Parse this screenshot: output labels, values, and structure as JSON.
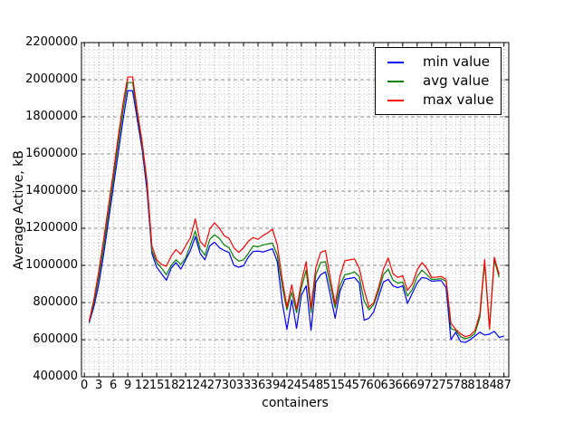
{
  "figure": {
    "background": "#ffffff",
    "frame_color": "#000000",
    "minor_grid_color": "#c9c9c9",
    "major_grid_color": "#8f8f8f"
  },
  "chart_data": {
    "type": "line",
    "title": "",
    "xlabel": "containers",
    "ylabel": "Average Active, kB",
    "xlim": [
      0,
      87
    ],
    "ylim": [
      400000,
      2200000
    ],
    "grid": "minor dotted and major dashed, both axes",
    "x_ticks": [
      0,
      3,
      6,
      9,
      12,
      15,
      18,
      21,
      24,
      27,
      30,
      33,
      36,
      39,
      42,
      45,
      48,
      51,
      54,
      57,
      60,
      63,
      66,
      69,
      72,
      75,
      78,
      81,
      84,
      87
    ],
    "y_ticks": [
      400000,
      600000,
      800000,
      1000000,
      1200000,
      1400000,
      1600000,
      1800000,
      2000000,
      2200000
    ],
    "legend": {
      "position": "upper right",
      "entries": [
        {
          "label": "min value",
          "color": "#0000ff"
        },
        {
          "label": "avg value",
          "color": "#008000"
        },
        {
          "label": "max value",
          "color": "#ff0000"
        }
      ]
    },
    "x": [
      1,
      2,
      3,
      4,
      5,
      6,
      7,
      8,
      9,
      10,
      11,
      12,
      13,
      14,
      15,
      16,
      17,
      18,
      19,
      20,
      21,
      22,
      23,
      24,
      25,
      26,
      27,
      28,
      29,
      30,
      31,
      32,
      33,
      34,
      35,
      36,
      37,
      38,
      39,
      40,
      41,
      42,
      43,
      44,
      45,
      46,
      47,
      48,
      49,
      50,
      51,
      52,
      53,
      54,
      55,
      56,
      57,
      58,
      59,
      60,
      61,
      62,
      63,
      64,
      65,
      66,
      67,
      68,
      69,
      70,
      71,
      72,
      73,
      74,
      75,
      76,
      77,
      78,
      79,
      80,
      81,
      82,
      83,
      84,
      85,
      86,
      87
    ],
    "series": [
      {
        "name": "min value",
        "color": "#0000ff",
        "values": [
          690000,
          780000,
          900000,
          1060000,
          1240000,
          1420000,
          1600000,
          1780000,
          1941000,
          1941000,
          1780000,
          1620000,
          1400000,
          1065000,
          990000,
          955000,
          920000,
          985000,
          1015000,
          980000,
          1030000,
          1080000,
          1155000,
          1065000,
          1030000,
          1105000,
          1125000,
          1095000,
          1080000,
          1070000,
          1000000,
          990000,
          998000,
          1045000,
          1075000,
          1077000,
          1072000,
          1080000,
          1090000,
          1020000,
          805000,
          655000,
          815000,
          660000,
          840000,
          890000,
          650000,
          910000,
          950000,
          965000,
          840000,
          715000,
          860000,
          925000,
          930000,
          935000,
          905000,
          705000,
          715000,
          750000,
          830000,
          910000,
          925000,
          890000,
          880000,
          890000,
          795000,
          850000,
          905000,
          935000,
          930000,
          915000,
          917000,
          918000,
          880000,
          600000,
          640000,
          590000,
          585000,
          600000,
          620000,
          640000,
          625000,
          630000,
          645000,
          612000,
          620000
        ]
      },
      {
        "name": "avg value",
        "color": "#008000",
        "values": [
          695000,
          800000,
          940000,
          1100000,
          1280000,
          1460000,
          1650000,
          1830000,
          1985000,
          1985000,
          1810000,
          1645000,
          1430000,
          1080000,
          1015000,
          985000,
          950000,
          1000000,
          1030000,
          1005000,
          1040000,
          1110000,
          1185000,
          1090000,
          1055000,
          1140000,
          1165000,
          1145000,
          1110000,
          1095000,
          1045000,
          1023000,
          1030000,
          1065000,
          1105000,
          1100000,
          1110000,
          1115000,
          1120000,
          1055000,
          890000,
          760000,
          855000,
          745000,
          880000,
          975000,
          745000,
          950000,
          1015000,
          1020000,
          890000,
          770000,
          890000,
          950000,
          955000,
          965000,
          940000,
          810000,
          760000,
          790000,
          860000,
          950000,
          980000,
          920000,
          905000,
          910000,
          835000,
          870000,
          940000,
          975000,
          950000,
          925000,
          926000,
          928000,
          915000,
          660000,
          650000,
          616000,
          605000,
          613000,
          635000,
          720000,
          1015000,
          655000,
          1030000,
          937000,
          null
        ]
      },
      {
        "name": "max value",
        "color": "#ff0000",
        "values": [
          700000,
          820000,
          970000,
          1140000,
          1320000,
          1500000,
          1690000,
          1870000,
          2015000,
          2015000,
          1830000,
          1660000,
          1450000,
          1105000,
          1030000,
          1005000,
          995000,
          1050000,
          1085000,
          1060000,
          1105000,
          1150000,
          1250000,
          1130000,
          1100000,
          1195000,
          1230000,
          1200000,
          1160000,
          1145000,
          1095000,
          1070000,
          1095000,
          1130000,
          1150000,
          1140000,
          1160000,
          1175000,
          1195000,
          1110000,
          930000,
          775000,
          895000,
          765000,
          910000,
          1020000,
          770000,
          990000,
          1070000,
          1080000,
          930000,
          790000,
          940000,
          1025000,
          1030000,
          1035000,
          985000,
          870000,
          775000,
          800000,
          880000,
          980000,
          1040000,
          955000,
          935000,
          945000,
          865000,
          900000,
          975000,
          1015000,
          985000,
          935000,
          937000,
          940000,
          925000,
          690000,
          655000,
          632000,
          616000,
          624000,
          650000,
          740000,
          1031000,
          660000,
          1044000,
          951000,
          null
        ]
      }
    ]
  }
}
